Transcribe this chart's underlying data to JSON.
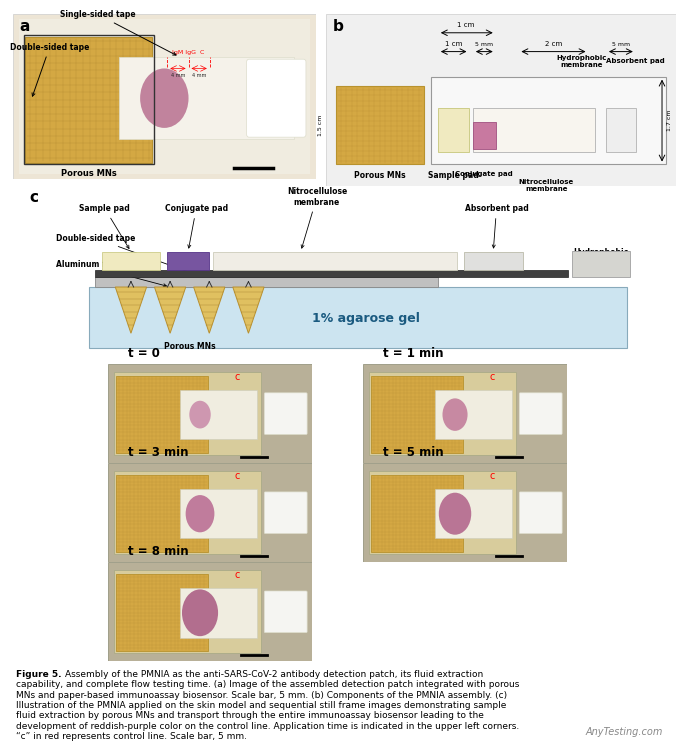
{
  "fig_width": 6.8,
  "fig_height": 7.34,
  "bg_color": "#ffffff",
  "panel_a_label": "a",
  "panel_b_label": "b",
  "panel_c_label": "c",
  "ann_single_sided_tape": "Single-sided tape",
  "ann_double_sided_tape": "Double-sided tape",
  "ann_porous_mns": "Porous MNs",
  "ann_igm_igg_c": "IgM IgG  C",
  "ann_4mm": "4 mm 4 mm",
  "ann_hydrophobic": "Hydrophobic\nmembrane",
  "ann_absorbent_pad": "Absorbent pad",
  "ann_sample_pad": "Sample pad",
  "ann_conjugate_pad": "Conjugate pad",
  "ann_nitrocellulose": "Nitrocellulose\nmembrane",
  "ann_1cm_a": "1 cm",
  "ann_1cm_b": "1 cm",
  "ann_15cm": "1.5 cm",
  "ann_5mm_conj": "5 mm",
  "ann_2cm": "2 cm",
  "ann_5mm_abs": "5 mm",
  "ann_17cm": "1.7 cm",
  "c_sample_pad": "Sample pad",
  "c_conjugate_pad": "Conjugate pad",
  "c_nitrocellulose": "Nitrocellulose\nmembrane",
  "c_absorbent_pad": "Absorbent pad",
  "c_double_tape": "Double-sided tape",
  "c_aluminum": "Aluminum foil",
  "c_porous_mns": "Porous MNs",
  "c_agarose": "1% agarose gel",
  "c_hydrophobic": "Hydrophobic\nmembrane",
  "time_labels": [
    "t = 0",
    "t = 1 min",
    "t = 3 min",
    "t = 5 min",
    "t = 8 min"
  ],
  "stain_colors": [
    "#c888a8",
    "#c07898",
    "#b86890",
    "#b06088",
    "#a85880"
  ],
  "caption_bold": "Figure 5.",
  "caption_text": "  Assembly of the PMNIA as the anti-SARS-CoV-2 antibody detection patch, its fluid extraction capability, and complete flow testing time. (a) Image of the assembled detection patch integrated with porous MNs and paper-based immunoassay biosensor. Scale bar, 5 mm. (b) Components of the PMNIA assembly. (c) Illustration of the PMNIA applied on the skin model and sequential still frame images demonstrating sample fluid extraction by porous MNs and transport through the entire immunoassay biosensor leading to the development of reddish-purple color on the control line. Application time is indicated in the upper left corners. “c” in red represents control line. Scale bar, 5 mm.",
  "watermark": "AnyTesting.com"
}
